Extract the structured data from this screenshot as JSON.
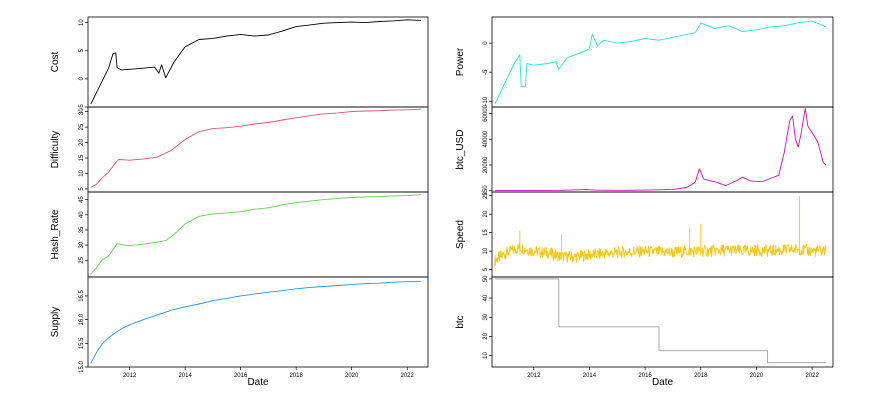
{
  "figure": {
    "x_axis_label": "Date",
    "x_ticks": [
      "2012",
      "2014",
      "2016",
      "2018",
      "2020",
      "2022"
    ],
    "x_range": [
      2010.5,
      2022.75
    ]
  },
  "chart_data": [
    {
      "type": "line",
      "panel": "Cost",
      "column": "left",
      "row": 0,
      "ylabel": "Cost",
      "color": "#000000",
      "ylim": [
        -5,
        11
      ],
      "yticks": [
        "-5",
        "0",
        "5",
        "10"
      ],
      "ytick_values": [
        -5,
        0,
        5,
        10
      ],
      "series": {
        "x": [
          2010.6,
          2010.75,
          2011.0,
          2011.25,
          2011.4,
          2011.5,
          2011.55,
          2011.7,
          2012.0,
          2012.5,
          2012.9,
          2013.05,
          2013.15,
          2013.3,
          2013.6,
          2014.0,
          2014.5,
          2015.0,
          2015.5,
          2016.0,
          2016.5,
          2017.0,
          2017.5,
          2018.0,
          2018.5,
          2019.0,
          2019.5,
          2020.0,
          2020.5,
          2021.0,
          2021.5,
          2022.0,
          2022.5
        ],
        "y": [
          -4.5,
          -3.0,
          -0.5,
          2.0,
          4.5,
          4.6,
          2.0,
          1.6,
          1.7,
          1.9,
          2.1,
          1.0,
          2.5,
          0.2,
          3.0,
          5.7,
          7.0,
          7.2,
          7.6,
          7.9,
          7.6,
          7.8,
          8.5,
          9.3,
          9.6,
          9.9,
          10.0,
          10.1,
          10.0,
          10.2,
          10.3,
          10.5,
          10.4
        ]
      }
    },
    {
      "type": "line",
      "panel": "Difficulty",
      "column": "left",
      "row": 1,
      "ylabel": "Difficulty",
      "color": "#DF536B",
      "ylim": [
        4,
        31.5
      ],
      "yticks": [
        "5",
        "10",
        "15",
        "20",
        "25",
        "30"
      ],
      "ytick_values": [
        5,
        10,
        15,
        20,
        25,
        30
      ],
      "series": {
        "x": [
          2010.6,
          2010.8,
          2011.0,
          2011.25,
          2011.5,
          2011.6,
          2012.0,
          2012.5,
          2013.0,
          2013.5,
          2014.0,
          2014.5,
          2015.0,
          2015.5,
          2016.0,
          2016.5,
          2017.0,
          2017.5,
          2018.0,
          2018.5,
          2019.0,
          2019.5,
          2020.0,
          2020.5,
          2021.0,
          2021.5,
          2022.0,
          2022.5
        ],
        "y": [
          5.5,
          6.5,
          8.5,
          10.5,
          13.5,
          14.5,
          14.3,
          14.7,
          15.3,
          17.5,
          21.0,
          23.5,
          24.5,
          24.8,
          25.3,
          26.0,
          26.5,
          27.3,
          28.0,
          28.7,
          29.3,
          29.6,
          30.0,
          30.2,
          30.3,
          30.5,
          30.6,
          30.8
        ]
      }
    },
    {
      "type": "line",
      "panel": "Hash_Rate",
      "column": "left",
      "row": 2,
      "ylabel": "Hash_Rate",
      "color": "#61D04F",
      "ylim": [
        19.5,
        47.5
      ],
      "yticks": [
        "25",
        "30",
        "35",
        "40",
        "45"
      ],
      "ytick_values": [
        25,
        30,
        35,
        40,
        45
      ],
      "series": {
        "x": [
          2010.6,
          2010.8,
          2011.0,
          2011.25,
          2011.4,
          2011.55,
          2011.8,
          2012.0,
          2012.5,
          2013.0,
          2013.3,
          2013.6,
          2014.0,
          2014.5,
          2015.0,
          2015.5,
          2016.0,
          2016.5,
          2017.0,
          2017.5,
          2018.0,
          2018.5,
          2019.0,
          2019.5,
          2020.0,
          2020.5,
          2021.0,
          2021.5,
          2022.0,
          2022.5
        ],
        "y": [
          20.5,
          22.5,
          25.0,
          26.5,
          28.5,
          30.5,
          30.0,
          29.8,
          30.3,
          31.0,
          31.5,
          33.5,
          37.0,
          39.5,
          40.3,
          40.6,
          41.0,
          41.8,
          42.3,
          43.3,
          44.0,
          44.5,
          45.0,
          45.4,
          45.7,
          45.9,
          46.0,
          46.2,
          46.3,
          46.6
        ]
      }
    },
    {
      "type": "line",
      "panel": "Supply",
      "column": "left",
      "row": 3,
      "ylabel": "Supply",
      "color": "#2297E6",
      "ylim": [
        15.0,
        16.9
      ],
      "yticks": [
        "15.0",
        "15.5",
        "16.0",
        "16.5"
      ],
      "ytick_values": [
        15.0,
        15.5,
        16.0,
        16.5
      ],
      "series": {
        "x": [
          2010.6,
          2010.8,
          2011.0,
          2011.25,
          2011.5,
          2011.75,
          2012.0,
          2012.5,
          2013.0,
          2013.5,
          2014.0,
          2014.5,
          2015.0,
          2015.5,
          2016.0,
          2016.5,
          2017.0,
          2017.5,
          2018.0,
          2018.5,
          2019.0,
          2019.5,
          2020.0,
          2020.5,
          2021.0,
          2021.5,
          2022.0,
          2022.5
        ],
        "y": [
          15.08,
          15.3,
          15.48,
          15.62,
          15.73,
          15.82,
          15.89,
          16.0,
          16.1,
          16.2,
          16.27,
          16.33,
          16.4,
          16.45,
          16.5,
          16.54,
          16.58,
          16.61,
          16.65,
          16.68,
          16.7,
          16.72,
          16.74,
          16.76,
          16.77,
          16.79,
          16.8,
          16.81
        ]
      }
    },
    {
      "type": "line",
      "panel": "Power",
      "column": "right",
      "row": 0,
      "ylabel": "Power",
      "color": "#28E2E5",
      "ylim": [
        -11,
        4.5
      ],
      "yticks": [
        "-10",
        "-5",
        "0"
      ],
      "ytick_values": [
        -10,
        -5,
        0
      ],
      "series": {
        "x": [
          2010.6,
          2010.8,
          2011.0,
          2011.3,
          2011.5,
          2011.55,
          2011.7,
          2011.75,
          2012.0,
          2012.5,
          2012.8,
          2012.9,
          2013.2,
          2013.5,
          2014.0,
          2014.1,
          2014.3,
          2014.5,
          2015.0,
          2015.5,
          2016.0,
          2016.5,
          2017.0,
          2017.5,
          2017.8,
          2018.0,
          2018.5,
          2019.0,
          2019.5,
          2020.0,
          2020.5,
          2021.0,
          2021.5,
          2022.0,
          2022.5
        ],
        "y": [
          -10.5,
          -8.5,
          -6.5,
          -3.5,
          -2.0,
          -7.5,
          -7.5,
          -3.5,
          -3.8,
          -3.5,
          -3.2,
          -4.5,
          -2.5,
          -2.0,
          -1.0,
          1.5,
          -0.5,
          0.5,
          0.0,
          0.3,
          0.8,
          0.5,
          1.0,
          1.5,
          1.8,
          3.5,
          2.5,
          3.0,
          2.0,
          2.3,
          2.8,
          3.0,
          3.5,
          3.8,
          2.8
        ]
      }
    },
    {
      "type": "line",
      "panel": "btc_USD",
      "column": "right",
      "row": 1,
      "ylabel": "btc_USD",
      "color": "#CD0BBC",
      "ylim": [
        -1000,
        65000
      ],
      "yticks": [
        "250",
        "20000",
        "40000",
        "60000"
      ],
      "ytick_values": [
        250,
        20000,
        40000,
        60000
      ],
      "series": {
        "x": [
          2010.6,
          2012.0,
          2013.0,
          2013.9,
          2014.2,
          2015.0,
          2016.0,
          2016.8,
          2017.0,
          2017.5,
          2017.8,
          2017.95,
          2018.1,
          2018.5,
          2018.9,
          2019.3,
          2019.5,
          2019.8,
          2020.2,
          2020.5,
          2020.8,
          2021.0,
          2021.2,
          2021.3,
          2021.4,
          2021.5,
          2021.6,
          2021.75,
          2021.85,
          2022.0,
          2022.2,
          2022.4,
          2022.5
        ],
        "y": [
          250,
          250,
          300,
          900,
          500,
          300,
          450,
          900,
          1000,
          2500,
          6500,
          17000,
          9000,
          7000,
          4000,
          8000,
          10500,
          7500,
          7000,
          9500,
          12000,
          30000,
          55000,
          58000,
          40000,
          34000,
          44000,
          64000,
          50000,
          45000,
          38000,
          22000,
          20000
        ]
      }
    },
    {
      "type": "line",
      "panel": "Speed",
      "column": "right",
      "row": 2,
      "ylabel": "Speed",
      "color": "#F5C710",
      "ylim": [
        3,
        26
      ],
      "yticks": [
        "5",
        "10",
        "15",
        "20",
        "25"
      ],
      "ytick_values": [
        5,
        10,
        15,
        20,
        25
      ],
      "series": {
        "x": [
          2010.6,
          2011.0,
          2011.5,
          2012.0,
          2012.5,
          2013.0,
          2013.5,
          2014.0,
          2014.5,
          2015.0,
          2015.5,
          2016.0,
          2016.5,
          2017.0,
          2017.5,
          2018.0,
          2018.5,
          2019.0,
          2019.5,
          2020.0,
          2020.5,
          2021.0,
          2021.5,
          2022.0,
          2022.5
        ],
        "y": [
          7.5,
          9.5,
          11.0,
          10.0,
          9.5,
          8.5,
          8.5,
          9.0,
          9.3,
          9.6,
          9.8,
          9.9,
          9.8,
          9.7,
          9.9,
          10.0,
          10.1,
          10.3,
          10.0,
          10.2,
          10.1,
          10.3,
          10.5,
          10.0,
          10.2
        ]
      }
    },
    {
      "type": "line",
      "panel": "btc",
      "column": "right",
      "row": 3,
      "ylabel": "btc",
      "color": "#9E9E9E",
      "ylim": [
        4,
        51
      ],
      "yticks": [
        "10",
        "20",
        "30",
        "40",
        "50"
      ],
      "ytick_values": [
        10,
        20,
        30,
        40,
        50
      ],
      "series": {
        "x": [
          2010.6,
          2012.9,
          2012.9,
          2016.5,
          2016.5,
          2020.4,
          2020.4,
          2022.5
        ],
        "y": [
          50,
          50,
          25,
          25,
          12.5,
          12.5,
          6.25,
          6.25
        ]
      }
    }
  ]
}
